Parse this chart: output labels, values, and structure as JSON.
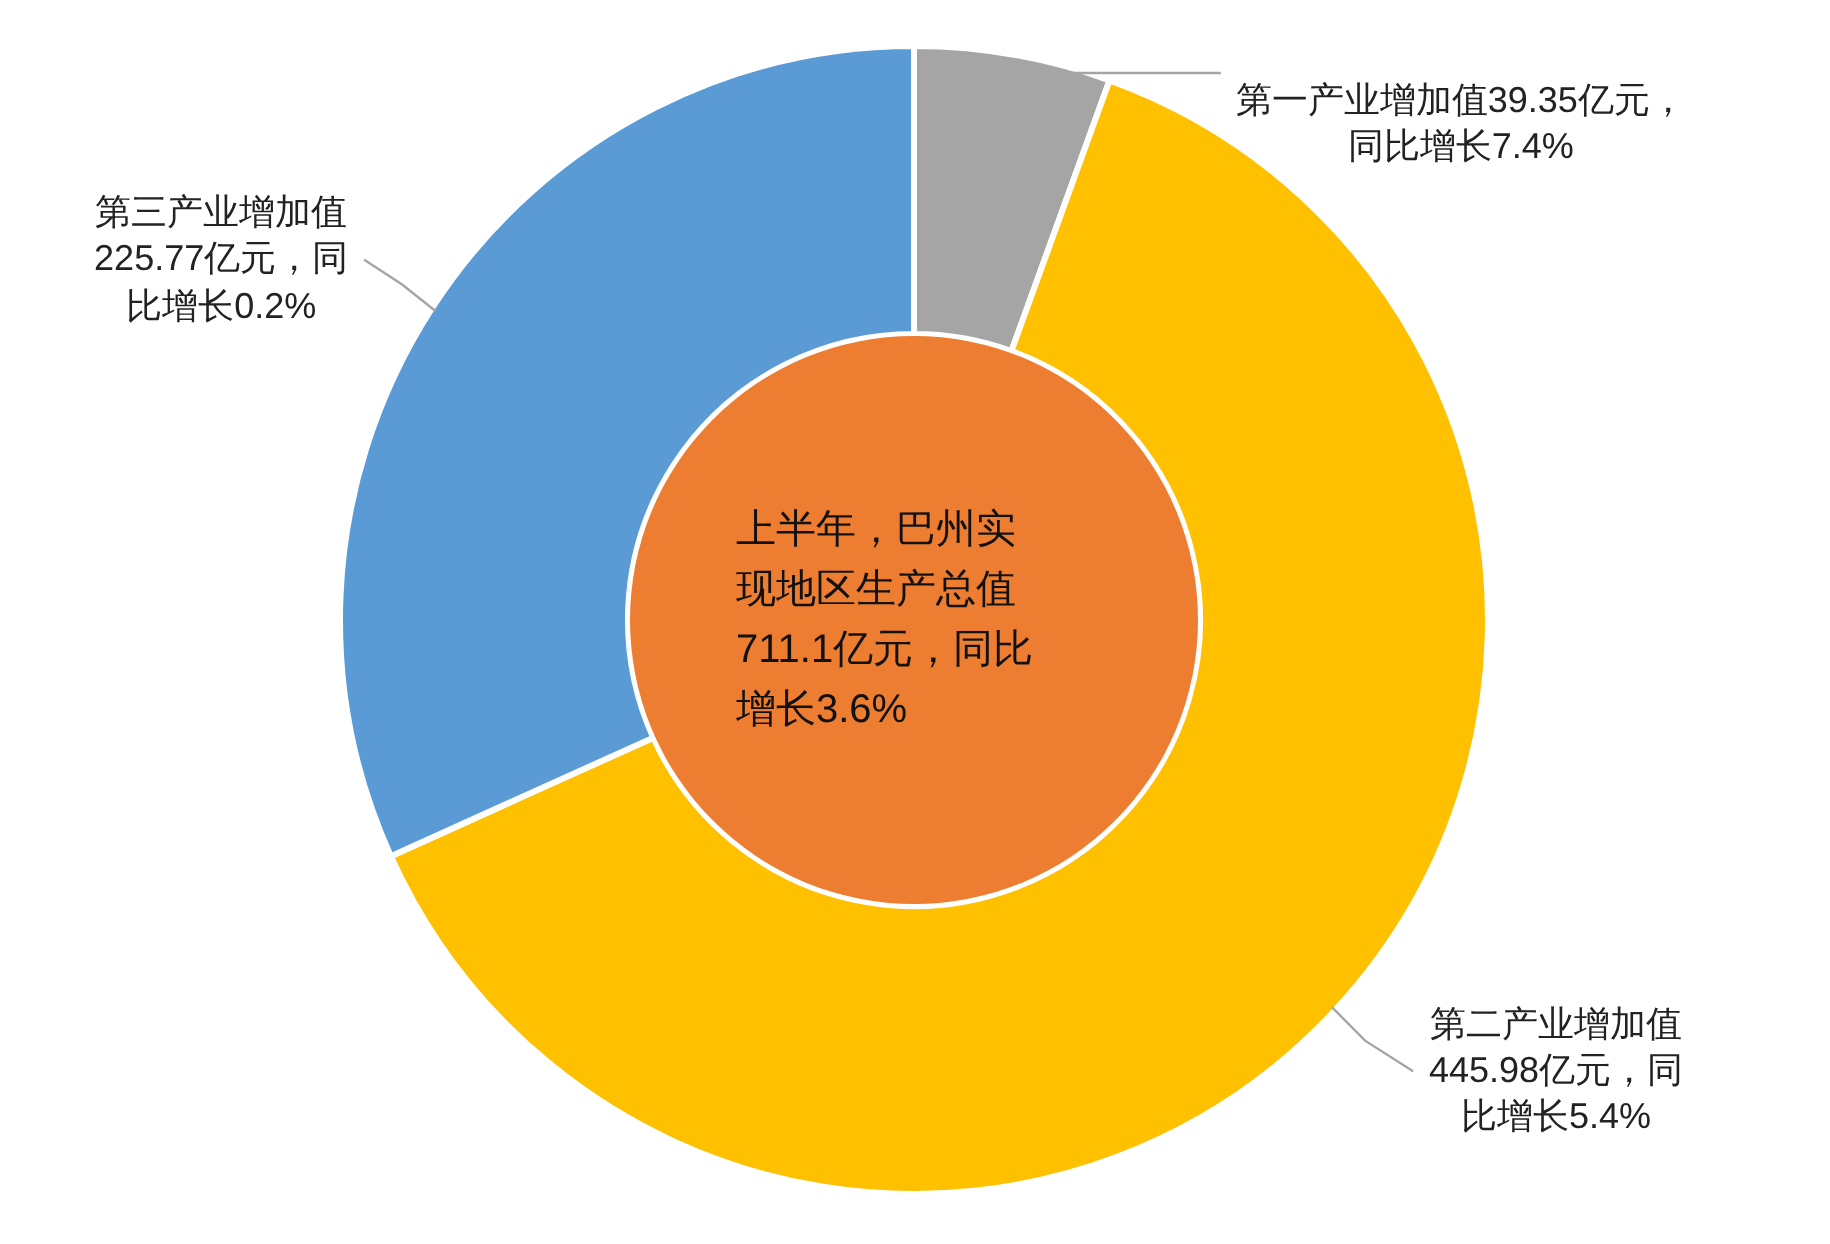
{
  "chart_data": {
    "type": "donut",
    "categories": [
      "第一产业增加值",
      "第二产业增加值",
      "第三产业增加值"
    ],
    "values": [
      39.35,
      445.98,
      225.77
    ],
    "colors": [
      "#a5a5a5",
      "#ffc000",
      "#5b9bd5"
    ],
    "value_labels": [
      "39.35亿元，同比增长7.4%",
      "445.98亿元，同比增长5.4%",
      "225.77亿元，同比增长0.2%"
    ],
    "annotations": [
      "上半年，巴州实现地区生产总值711.1亿元，同比增长3.6%"
    ]
  }
}
